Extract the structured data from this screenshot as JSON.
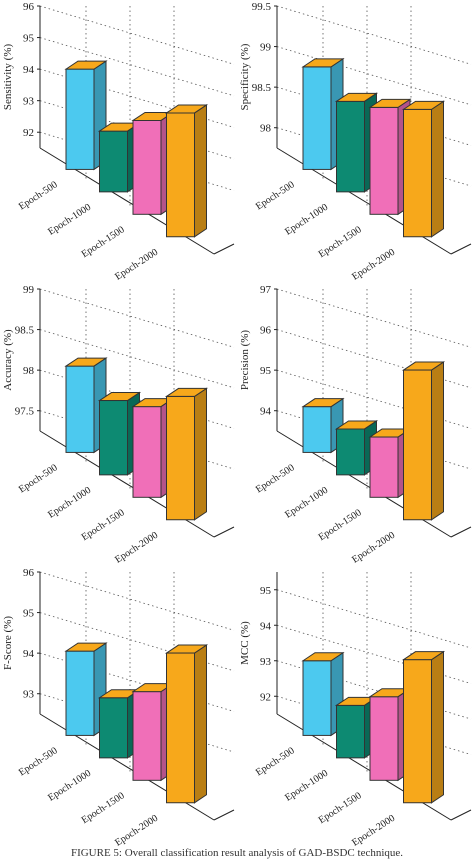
{
  "caption": "FIGURE 5: Overall classification result analysis of GAD-BSDC technique.",
  "chart_data": [
    {
      "type": "bar",
      "ylabel": "Sensitivity (%)",
      "ylim": [
        91.5,
        96
      ],
      "yticks": [
        92,
        93,
        94,
        95,
        96
      ],
      "categories": [
        "Epoch-500",
        "Epoch-1000",
        "Epoch-1500",
        "Epoch-2000"
      ],
      "values": [
        94.0,
        92.1,
        92.5,
        92.8
      ],
      "colors": [
        "#4cc9ef",
        "#0d8a72",
        "#f06fb8",
        "#f7a81b"
      ]
    },
    {
      "type": "bar",
      "ylabel": "Specificity (%)",
      "ylim": [
        97.75,
        99.5
      ],
      "yticks": [
        98,
        98.5,
        99,
        99.5
      ],
      "categories": [
        "Epoch-500",
        "Epoch-1000",
        "Epoch-1500",
        "Epoch-2000"
      ],
      "values": [
        98.75,
        98.35,
        98.3,
        98.3
      ],
      "colors": [
        "#4cc9ef",
        "#0d8a72",
        "#f06fb8",
        "#f7a81b"
      ]
    },
    {
      "type": "bar",
      "ylabel": "Accuracy (%)",
      "ylim": [
        97.25,
        99
      ],
      "yticks": [
        97.5,
        98,
        98.5,
        99
      ],
      "categories": [
        "Epoch-500",
        "Epoch-1000",
        "Epoch-1500",
        "Epoch-2000"
      ],
      "values": [
        98.05,
        97.65,
        97.6,
        97.75
      ],
      "colors": [
        "#4cc9ef",
        "#0d8a72",
        "#f06fb8",
        "#f7a81b"
      ]
    },
    {
      "type": "bar",
      "ylabel": "Precision (%)",
      "ylim": [
        93.5,
        97
      ],
      "yticks": [
        94,
        95,
        96,
        97
      ],
      "categories": [
        "Epoch-500",
        "Epoch-1000",
        "Epoch-1500",
        "Epoch-2000"
      ],
      "values": [
        94.1,
        93.6,
        93.45,
        95.15
      ],
      "colors": [
        "#4cc9ef",
        "#0d8a72",
        "#f06fb8",
        "#f7a81b"
      ]
    },
    {
      "type": "bar",
      "ylabel": "F-Score (%)",
      "ylim": [
        92.5,
        96
      ],
      "yticks": [
        93,
        94,
        95,
        96
      ],
      "categories": [
        "Epoch-500",
        "Epoch-1000",
        "Epoch-1500",
        "Epoch-2000"
      ],
      "values": [
        94.05,
        92.95,
        93.15,
        94.15
      ],
      "colors": [
        "#4cc9ef",
        "#0d8a72",
        "#f06fb8",
        "#f7a81b"
      ]
    },
    {
      "type": "bar",
      "ylabel": "MCC (%)",
      "ylim": [
        91.5,
        95.5
      ],
      "yticks": [
        92,
        93,
        94,
        95
      ],
      "categories": [
        "Epoch-500",
        "Epoch-1000",
        "Epoch-1500",
        "Epoch-2000"
      ],
      "values": [
        93.0,
        91.8,
        92.1,
        93.2
      ],
      "colors": [
        "#4cc9ef",
        "#0d8a72",
        "#f06fb8",
        "#f7a81b"
      ]
    }
  ]
}
